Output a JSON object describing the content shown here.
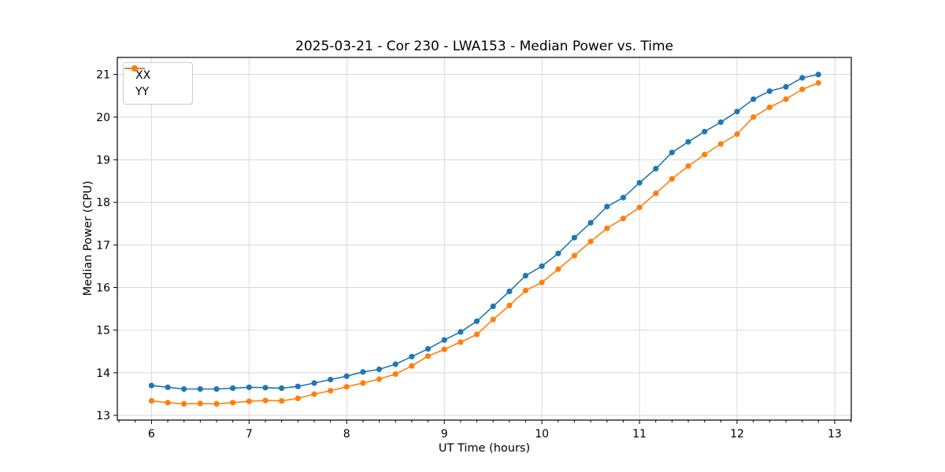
{
  "chart_data": {
    "type": "line",
    "title": "2025-03-21 - Cor 230 - LWA153 - Median Power vs. Time",
    "xlabel": "UT Time (hours)",
    "ylabel": "Median Power (CPU)",
    "xlim": [
      5.65,
      13.17
    ],
    "ylim": [
      12.89,
      21.4
    ],
    "xticks": [
      6,
      7,
      8,
      9,
      10,
      11,
      12,
      13
    ],
    "yticks": [
      13,
      14,
      15,
      16,
      17,
      18,
      19,
      20,
      21
    ],
    "x_minor_tick_step": 0.1667,
    "grid": true,
    "legend_position": "upper-left",
    "x": [
      6.0,
      6.167,
      6.333,
      6.5,
      6.667,
      6.833,
      7.0,
      7.167,
      7.333,
      7.5,
      7.667,
      7.833,
      8.0,
      8.167,
      8.333,
      8.5,
      8.667,
      8.833,
      9.0,
      9.167,
      9.333,
      9.5,
      9.667,
      9.833,
      10.0,
      10.167,
      10.333,
      10.5,
      10.667,
      10.833,
      11.0,
      11.167,
      11.333,
      11.5,
      11.667,
      11.833,
      12.0,
      12.167,
      12.333,
      12.5,
      12.667,
      12.833
    ],
    "series": [
      {
        "name": "XX",
        "color": "#1f77b4",
        "values": [
          13.7,
          13.66,
          13.62,
          13.62,
          13.62,
          13.64,
          13.66,
          13.65,
          13.64,
          13.68,
          13.76,
          13.84,
          13.92,
          14.02,
          14.08,
          14.2,
          14.38,
          14.56,
          14.77,
          14.96,
          15.21,
          15.56,
          15.91,
          16.28,
          16.5,
          16.8,
          17.17,
          17.52,
          17.9,
          18.11,
          18.46,
          18.79,
          19.17,
          19.42,
          19.66,
          19.88,
          20.13,
          20.42,
          20.61,
          20.71,
          20.92,
          21.0
        ]
      },
      {
        "name": "YY",
        "color": "#ff7f0e",
        "values": [
          13.34,
          13.3,
          13.27,
          13.28,
          13.27,
          13.3,
          13.33,
          13.35,
          13.34,
          13.4,
          13.5,
          13.58,
          13.67,
          13.76,
          13.85,
          13.97,
          14.16,
          14.39,
          14.55,
          14.72,
          14.9,
          15.25,
          15.58,
          15.93,
          16.12,
          16.43,
          16.75,
          17.08,
          17.39,
          17.62,
          17.88,
          18.21,
          18.55,
          18.85,
          19.12,
          19.37,
          19.6,
          20.0,
          20.23,
          20.42,
          20.65,
          20.8
        ]
      }
    ],
    "style": {
      "grid_color": "#d8d8d8",
      "axis_color": "#000000",
      "background": "#ffffff"
    }
  }
}
